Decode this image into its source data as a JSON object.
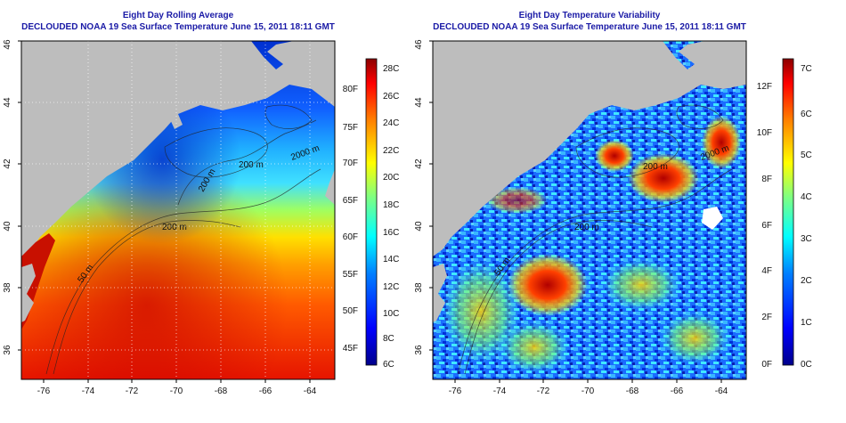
{
  "left_panel": {
    "title": "Eight Day Rolling Average",
    "subtitle": "DECLOUDED NOAA 19 Sea Surface Temperature June 15, 2011 18:11 GMT",
    "lon_ticks": [
      "-76",
      "-74",
      "-72",
      "-70",
      "-68",
      "-66",
      "-64"
    ],
    "lat_ticks": [
      "36",
      "38",
      "40",
      "42",
      "44",
      "46"
    ],
    "contour_labels": [
      "50 m",
      "200 m",
      "200 m",
      "200 m",
      "2000 m"
    ],
    "colorbar_c": [
      "28C",
      "26C",
      "24C",
      "22C",
      "20C",
      "18C",
      "16C",
      "14C",
      "12C",
      "10C",
      "8C",
      "6C"
    ],
    "colorbar_f": [
      "80F",
      "75F",
      "70F",
      "65F",
      "60F",
      "55F",
      "50F",
      "45F"
    ]
  },
  "right_panel": {
    "title": "Eight Day Temperature Variability",
    "subtitle": "DECLOUDED NOAA 19 Sea Surface Temperature June 15, 2011 18:11 GMT",
    "lon_ticks": [
      "-76",
      "-74",
      "-72",
      "-70",
      "-68",
      "-66",
      "-64"
    ],
    "lat_ticks": [
      "36",
      "38",
      "40",
      "42",
      "44",
      "46"
    ],
    "contour_labels": [
      "50 m",
      "200 m",
      "200 m",
      "2000 m"
    ],
    "colorbar_c": [
      "7C",
      "6C",
      "5C",
      "4C",
      "3C",
      "2C",
      "1C",
      "0C"
    ],
    "colorbar_f": [
      "12F",
      "10F",
      "8F",
      "6F",
      "4F",
      "2F",
      "0F"
    ]
  },
  "colors": {
    "land": "#bdbdbd",
    "title": "#1a1aa6",
    "scale": [
      "#00008b",
      "#0000ff",
      "#0080ff",
      "#00ffff",
      "#80ff80",
      "#ffff00",
      "#ff8000",
      "#ff0000",
      "#8b0000"
    ]
  }
}
